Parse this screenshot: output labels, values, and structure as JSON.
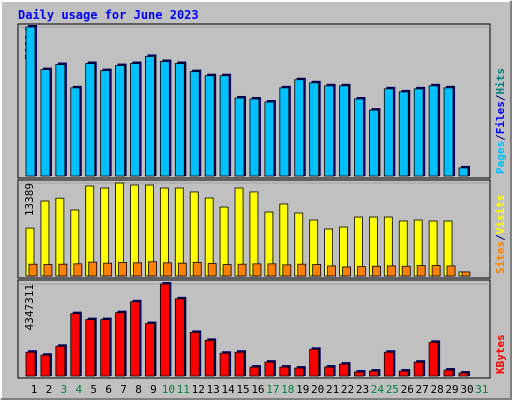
{
  "chart_data": [
    {
      "type": "bar",
      "title": "Daily usage for June 2023",
      "ylim": [
        0,
        58824
      ],
      "yticks": [
        58824
      ],
      "grid": true,
      "separator": "/",
      "series": [
        {
          "name": "Pages",
          "color": "#00c0ff",
          "values": [
            58824,
            42000,
            44000,
            34800,
            44400,
            41600,
            43600,
            44400,
            47200,
            45200,
            44400,
            41200,
            39600,
            39600,
            30800,
            30400,
            29200,
            34800,
            38000,
            36800,
            35600,
            35600,
            30400,
            26000,
            34400,
            33200,
            34400,
            35600,
            34800,
            3200,
            null
          ]
        }
      ],
      "legend_extra": [
        {
          "text": "Files",
          "color": "#0000ff"
        },
        {
          "text": "Hits",
          "color": "#008080"
        }
      ]
    },
    {
      "type": "bar",
      "ylim": [
        0,
        13389
      ],
      "yticks": [
        13389
      ],
      "grid": true,
      "separator": "/",
      "series": [
        {
          "name": "Visits",
          "color": "#ffff00",
          "values": [
            6900,
            10800,
            11200,
            9500,
            12960,
            12670,
            13389,
            13100,
            13100,
            12670,
            12670,
            12100,
            11230,
            9930,
            12670,
            12100,
            9210,
            10370,
            9070,
            8060,
            6770,
            7050,
            8490,
            8490,
            8490,
            7920,
            8060,
            7920,
            7920,
            580,
            null
          ]
        },
        {
          "name": "Sites",
          "color": "#ff8000",
          "values": [
            1700,
            1650,
            1700,
            1750,
            2000,
            1850,
            1950,
            1900,
            2050,
            1900,
            1850,
            1950,
            1800,
            1650,
            1700,
            1750,
            1750,
            1600,
            1700,
            1650,
            1450,
            1300,
            1350,
            1400,
            1450,
            1400,
            1500,
            1500,
            1450,
            580,
            null
          ]
        }
      ]
    },
    {
      "type": "bar",
      "ylim": [
        0,
        4347311
      ],
      "yticks": [
        4347311
      ],
      "grid": true,
      "categories": [
        "1",
        "2",
        "3",
        "4",
        "5",
        "6",
        "7",
        "8",
        "9",
        "10",
        "11",
        "12",
        "13",
        "14",
        "15",
        "16",
        "17",
        "18",
        "19",
        "20",
        "21",
        "22",
        "23",
        "24",
        "25",
        "26",
        "27",
        "28",
        "29",
        "30",
        "31"
      ],
      "category_colors": [
        "#000000",
        "#000000",
        "#008040",
        "#008040",
        "#000000",
        "#000000",
        "#000000",
        "#000000",
        "#000000",
        "#008040",
        "#008040",
        "#000000",
        "#000000",
        "#000000",
        "#000000",
        "#000000",
        "#008040",
        "#008040",
        "#000000",
        "#000000",
        "#000000",
        "#000000",
        "#000000",
        "#008040",
        "#008040",
        "#000000",
        "#000000",
        "#000000",
        "#000000",
        "#000000",
        "#008040"
      ],
      "series": [
        {
          "name": "KBytes",
          "color": "#ff0000",
          "values": [
            1122000,
            982000,
            1402000,
            2945000,
            2664000,
            2664000,
            2992000,
            3506000,
            2477000,
            4347311,
            3646000,
            2057000,
            1683000,
            1075000,
            1122000,
            421000,
            654000,
            421000,
            374000,
            1262000,
            421000,
            561000,
            187000,
            234000,
            1122000,
            234000,
            654000,
            1589000,
            280000,
            140000,
            null
          ]
        }
      ]
    }
  ]
}
